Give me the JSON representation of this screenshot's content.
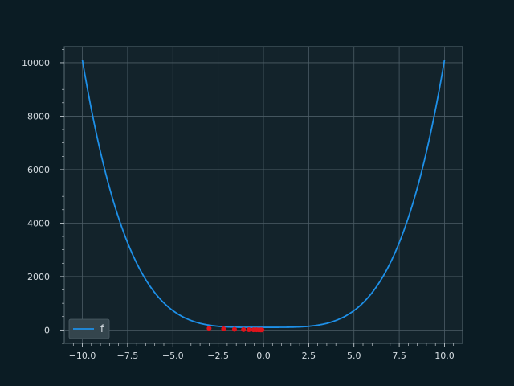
{
  "chart_data": {
    "type": "line",
    "title": "",
    "xlabel": "",
    "ylabel": "",
    "xlim": [
      -11,
      11
    ],
    "ylim": [
      -500,
      10600
    ],
    "grid": true,
    "legend_position": "lower-left",
    "x_ticks": [
      -10.0,
      -7.5,
      -5.0,
      -2.5,
      0.0,
      2.5,
      5.0,
      7.5,
      10.0
    ],
    "x_tick_labels": [
      "−10.0",
      "−7.5",
      "−5.0",
      "−2.5",
      "0.0",
      "2.5",
      "5.0",
      "7.5",
      "10.0"
    ],
    "y_ticks": [
      0,
      2000,
      4000,
      6000,
      8000,
      10000
    ],
    "y_tick_labels": [
      "0",
      "2000",
      "4000",
      "6000",
      "8000",
      "10000"
    ],
    "series": [
      {
        "name": "f",
        "kind": "line",
        "function": "x^4 + 100",
        "x_range": [
          -10,
          10
        ],
        "color": "#1e90e8"
      },
      {
        "name": "",
        "kind": "scatter",
        "color": "#e0141c",
        "points": [
          {
            "x": -3.0,
            "y": 60
          },
          {
            "x": -2.2,
            "y": 40
          },
          {
            "x": -1.6,
            "y": 25
          },
          {
            "x": -1.1,
            "y": 15
          },
          {
            "x": -0.8,
            "y": 10
          },
          {
            "x": -0.55,
            "y": 8
          },
          {
            "x": -0.38,
            "y": 6
          },
          {
            "x": -0.25,
            "y": 5
          },
          {
            "x": -0.15,
            "y": 4
          },
          {
            "x": -0.08,
            "y": 3
          }
        ]
      }
    ]
  },
  "colors": {
    "figure_bg": "#0b1c24",
    "axes_bg": "#13232b",
    "grid": "#4c5d66",
    "spine": "#5a6b73",
    "text": "#d6dde2"
  }
}
